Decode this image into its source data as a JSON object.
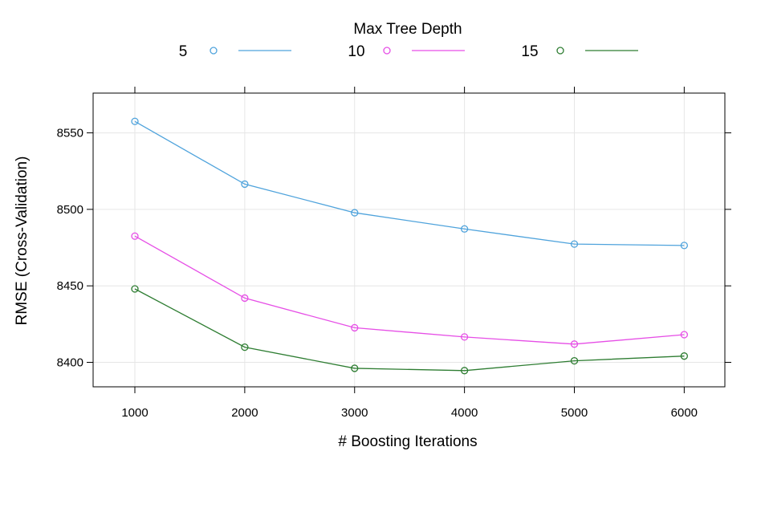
{
  "chart_data": {
    "type": "line",
    "title": "",
    "xlabel": "# Boosting Iterations",
    "ylabel": "RMSE (Cross-Validation)",
    "legend_title": "Max Tree Depth",
    "legend_position": "top",
    "grid": true,
    "x": [
      1000,
      2000,
      3000,
      4000,
      5000,
      6000
    ],
    "xticks": [
      1000,
      2000,
      3000,
      4000,
      5000,
      6000
    ],
    "yticks": [
      8400,
      8450,
      8500,
      8550
    ],
    "xlim": [
      620,
      6370
    ],
    "ylim": [
      8384,
      8576
    ],
    "series": [
      {
        "name": "5",
        "color": "#4fa3dc",
        "values": [
          8557.5,
          8516.5,
          8497.8,
          8487.2,
          8477.3,
          8476.4
        ]
      },
      {
        "name": "10",
        "color": "#e64ee6",
        "values": [
          8482.5,
          8442.0,
          8422.6,
          8416.6,
          8411.9,
          8418.1
        ]
      },
      {
        "name": "15",
        "color": "#2e7d32",
        "values": [
          8448.0,
          8409.9,
          8396.1,
          8394.6,
          8401.0,
          8404.1
        ]
      }
    ]
  }
}
